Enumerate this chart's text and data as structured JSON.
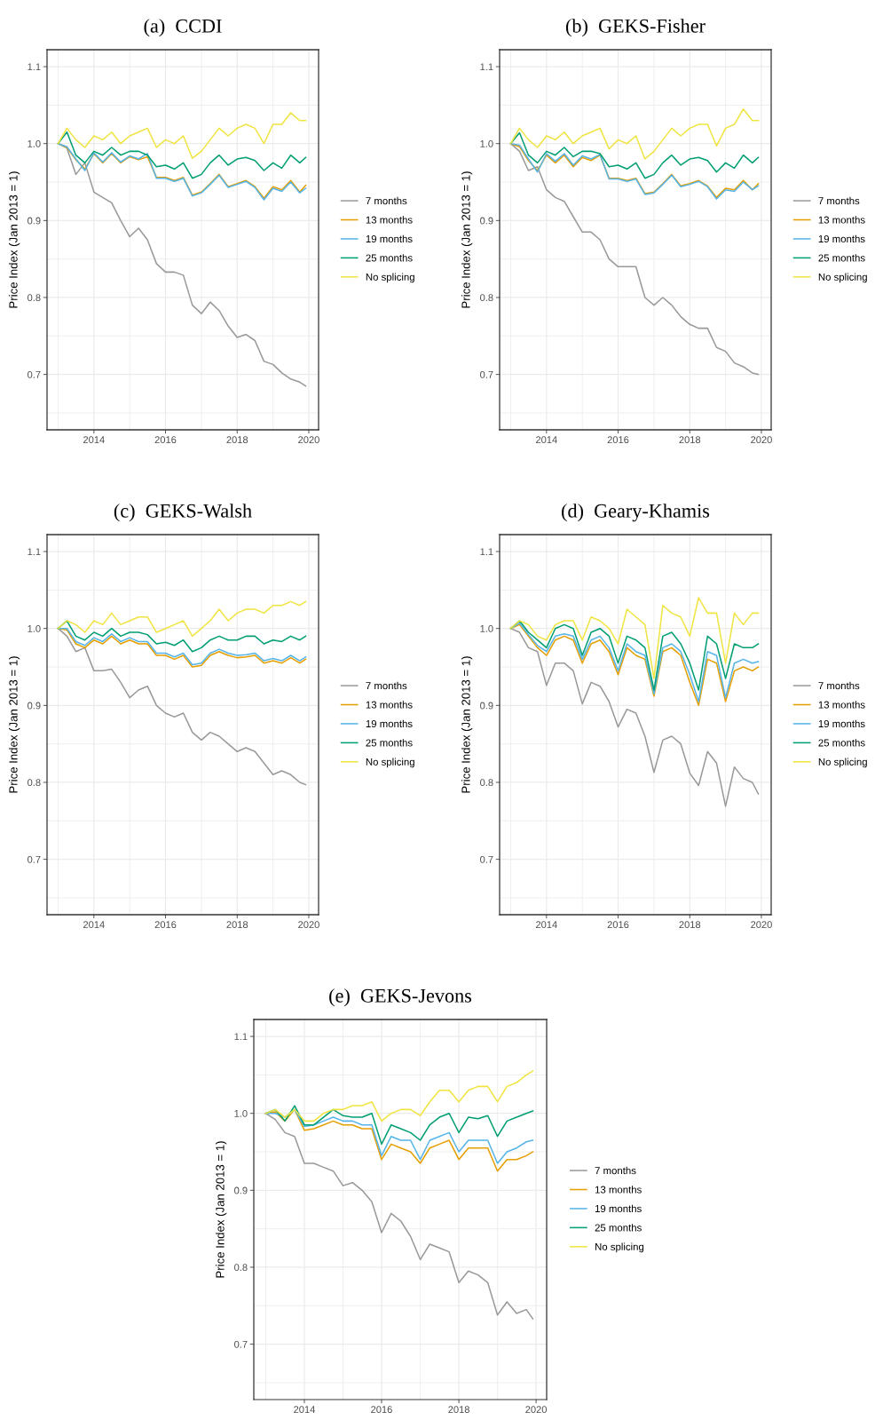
{
  "chart_data": [
    {
      "type": "line",
      "title": "(a)  CCDI",
      "ylabel": "Price Index (Jan 2013 = 1)",
      "legend": "right",
      "grid": true,
      "x": [
        "2013-01",
        "2013-04",
        "2013-07",
        "2013-10",
        "2014-01",
        "2014-04",
        "2014-07",
        "2014-10",
        "2015-01",
        "2015-04",
        "2015-07",
        "2015-10",
        "2016-01",
        "2016-04",
        "2016-07",
        "2016-10",
        "2017-01",
        "2017-04",
        "2017-07",
        "2017-10",
        "2018-01",
        "2018-04",
        "2018-07",
        "2018-10",
        "2019-01",
        "2019-04",
        "2019-07",
        "2019-10",
        "2019-12"
      ],
      "xlim": [
        "2012-09-10",
        "2020-04-10"
      ],
      "xticks": [
        {
          "value": "2013-01-01",
          "label": null
        },
        {
          "value": "2014-01-01",
          "label": "2014"
        },
        {
          "value": "2015-01-01",
          "label": null
        },
        {
          "value": "2016-01-01",
          "label": "2016"
        },
        {
          "value": "2017-01-01",
          "label": null
        },
        {
          "value": "2018-01-01",
          "label": "2018"
        },
        {
          "value": "2019-01-01",
          "label": null
        },
        {
          "value": "2020-01-01",
          "label": "2020"
        }
      ],
      "ylim": [
        0.628,
        1.122
      ],
      "yticks": [
        {
          "value": 0.65,
          "label": null
        },
        0.7,
        {
          "value": 0.75,
          "label": null
        },
        0.8,
        {
          "value": 0.85,
          "label": null
        },
        0.9,
        {
          "value": 0.95,
          "label": null
        },
        {
          "value": 1.0,
          "label": "1.0"
        },
        {
          "value": 1.05,
          "label": null
        },
        1.1
      ],
      "series": [
        {
          "name": "7 months",
          "color": "#999999",
          "values": [
            1.0,
            0.994,
            0.96,
            0.975,
            0.937,
            0.93,
            0.923,
            0.9,
            0.879,
            0.89,
            0.875,
            0.844,
            0.833,
            0.833,
            0.829,
            0.79,
            0.779,
            0.794,
            0.783,
            0.763,
            0.748,
            0.752,
            0.744,
            0.717,
            0.713,
            0.702,
            0.694,
            0.69,
            0.685
          ]
        },
        {
          "name": "13 months",
          "color": "#E69F00",
          "values": [
            1.0,
            0.995,
            0.979,
            0.967,
            0.987,
            0.975,
            0.987,
            0.975,
            0.983,
            0.979,
            0.983,
            0.956,
            0.956,
            0.952,
            0.956,
            0.933,
            0.937,
            0.948,
            0.96,
            0.944,
            0.948,
            0.952,
            0.944,
            0.929,
            0.944,
            0.94,
            0.952,
            0.937,
            0.946
          ]
        },
        {
          "name": "19 months",
          "color": "#56B4E9",
          "values": [
            1.0,
            0.996,
            0.98,
            0.965,
            0.988,
            0.976,
            0.988,
            0.976,
            0.984,
            0.98,
            0.987,
            0.955,
            0.955,
            0.951,
            0.955,
            0.932,
            0.936,
            0.947,
            0.959,
            0.943,
            0.947,
            0.951,
            0.943,
            0.927,
            0.942,
            0.938,
            0.95,
            0.936,
            0.942
          ]
        },
        {
          "name": "25 months",
          "color": "#009E73",
          "values": [
            1.0,
            1.015,
            0.985,
            0.975,
            0.99,
            0.985,
            0.995,
            0.985,
            0.99,
            0.99,
            0.985,
            0.97,
            0.972,
            0.967,
            0.975,
            0.955,
            0.96,
            0.975,
            0.985,
            0.972,
            0.98,
            0.982,
            0.978,
            0.965,
            0.975,
            0.968,
            0.985,
            0.975,
            0.982
          ]
        },
        {
          "name": "No splicing",
          "color": "#F0E442",
          "values": [
            1.0,
            1.02,
            1.005,
            0.995,
            1.01,
            1.005,
            1.015,
            1.0,
            1.01,
            1.015,
            1.02,
            0.995,
            1.005,
            1.0,
            1.01,
            0.981,
            0.99,
            1.005,
            1.02,
            1.01,
            1.02,
            1.025,
            1.02,
            1.0,
            1.025,
            1.025,
            1.04,
            1.03,
            1.03
          ]
        }
      ]
    },
    {
      "type": "line",
      "title": "(b)  GEKS-Fisher",
      "ylabel": "Price Index (Jan 2013 = 1)",
      "legend": "right",
      "grid": true,
      "x": [
        "2013-01",
        "2013-04",
        "2013-07",
        "2013-10",
        "2014-01",
        "2014-04",
        "2014-07",
        "2014-10",
        "2015-01",
        "2015-04",
        "2015-07",
        "2015-10",
        "2016-01",
        "2016-04",
        "2016-07",
        "2016-10",
        "2017-01",
        "2017-04",
        "2017-07",
        "2017-10",
        "2018-01",
        "2018-04",
        "2018-07",
        "2018-10",
        "2019-01",
        "2019-04",
        "2019-07",
        "2019-10",
        "2019-12"
      ],
      "xlim": [
        "2012-09-10",
        "2020-04-10"
      ],
      "xticks": [
        {
          "value": "2013-01-01",
          "label": null
        },
        {
          "value": "2014-01-01",
          "label": "2014"
        },
        {
          "value": "2015-01-01",
          "label": null
        },
        {
          "value": "2016-01-01",
          "label": "2016"
        },
        {
          "value": "2017-01-01",
          "label": null
        },
        {
          "value": "2018-01-01",
          "label": "2018"
        },
        {
          "value": "2019-01-01",
          "label": null
        },
        {
          "value": "2020-01-01",
          "label": "2020"
        }
      ],
      "ylim": [
        0.628,
        1.122
      ],
      "yticks": [
        {
          "value": 0.65,
          "label": null
        },
        0.7,
        {
          "value": 0.75,
          "label": null
        },
        0.8,
        {
          "value": 0.85,
          "label": null
        },
        0.9,
        {
          "value": 0.95,
          "label": null
        },
        {
          "value": 1.0,
          "label": "1.0"
        },
        {
          "value": 1.05,
          "label": null
        },
        1.1
      ],
      "series": [
        {
          "name": "7 months",
          "color": "#999999",
          "values": [
            1.0,
            0.99,
            0.965,
            0.97,
            0.94,
            0.93,
            0.925,
            0.905,
            0.885,
            0.885,
            0.875,
            0.85,
            0.84,
            0.84,
            0.84,
            0.8,
            0.79,
            0.8,
            0.79,
            0.775,
            0.765,
            0.76,
            0.76,
            0.735,
            0.73,
            0.715,
            0.71,
            0.702,
            0.7
          ]
        },
        {
          "name": "13 months",
          "color": "#E69F00",
          "values": [
            1.0,
            0.996,
            0.978,
            0.965,
            0.985,
            0.975,
            0.985,
            0.97,
            0.982,
            0.978,
            0.985,
            0.955,
            0.955,
            0.952,
            0.955,
            0.935,
            0.937,
            0.948,
            0.96,
            0.945,
            0.948,
            0.952,
            0.945,
            0.93,
            0.942,
            0.94,
            0.952,
            0.94,
            0.948
          ]
        },
        {
          "name": "19 months",
          "color": "#56B4E9",
          "values": [
            1.0,
            0.998,
            0.98,
            0.963,
            0.987,
            0.977,
            0.987,
            0.972,
            0.984,
            0.98,
            0.986,
            0.954,
            0.954,
            0.951,
            0.954,
            0.934,
            0.936,
            0.947,
            0.959,
            0.944,
            0.947,
            0.951,
            0.944,
            0.928,
            0.94,
            0.938,
            0.95,
            0.94,
            0.945
          ]
        },
        {
          "name": "25 months",
          "color": "#009E73",
          "values": [
            1.0,
            1.014,
            0.985,
            0.975,
            0.99,
            0.985,
            0.995,
            0.983,
            0.99,
            0.99,
            0.987,
            0.97,
            0.972,
            0.967,
            0.975,
            0.955,
            0.96,
            0.975,
            0.985,
            0.972,
            0.98,
            0.982,
            0.978,
            0.963,
            0.975,
            0.968,
            0.985,
            0.975,
            0.982
          ]
        },
        {
          "name": "No splicing",
          "color": "#F0E442",
          "values": [
            1.0,
            1.02,
            1.005,
            0.995,
            1.01,
            1.005,
            1.015,
            1.0,
            1.01,
            1.015,
            1.02,
            0.993,
            1.005,
            1.0,
            1.01,
            0.98,
            0.99,
            1.005,
            1.02,
            1.01,
            1.02,
            1.025,
            1.025,
            0.997,
            1.02,
            1.025,
            1.045,
            1.03,
            1.03
          ]
        }
      ]
    },
    {
      "type": "line",
      "title": "(c)  GEKS-Walsh",
      "ylabel": "Price Index (Jan 2013 = 1)",
      "legend": "right",
      "grid": true,
      "x": [
        "2013-01",
        "2013-04",
        "2013-07",
        "2013-10",
        "2014-01",
        "2014-04",
        "2014-07",
        "2014-10",
        "2015-01",
        "2015-04",
        "2015-07",
        "2015-10",
        "2016-01",
        "2016-04",
        "2016-07",
        "2016-10",
        "2017-01",
        "2017-04",
        "2017-07",
        "2017-10",
        "2018-01",
        "2018-04",
        "2018-07",
        "2018-10",
        "2019-01",
        "2019-04",
        "2019-07",
        "2019-10",
        "2019-12"
      ],
      "xlim": [
        "2012-09-10",
        "2020-04-10"
      ],
      "xticks": [
        {
          "value": "2013-01-01",
          "label": null
        },
        {
          "value": "2014-01-01",
          "label": "2014"
        },
        {
          "value": "2015-01-01",
          "label": null
        },
        {
          "value": "2016-01-01",
          "label": "2016"
        },
        {
          "value": "2017-01-01",
          "label": null
        },
        {
          "value": "2018-01-01",
          "label": "2018"
        },
        {
          "value": "2019-01-01",
          "label": null
        },
        {
          "value": "2020-01-01",
          "label": "2020"
        }
      ],
      "ylim": [
        0.628,
        1.122
      ],
      "yticks": [
        {
          "value": 0.65,
          "label": null
        },
        0.7,
        {
          "value": 0.75,
          "label": null
        },
        0.8,
        {
          "value": 0.85,
          "label": null
        },
        0.9,
        {
          "value": 0.95,
          "label": null
        },
        {
          "value": 1.0,
          "label": "1.0"
        },
        {
          "value": 1.05,
          "label": null
        },
        1.1
      ],
      "series": [
        {
          "name": "7 months",
          "color": "#999999",
          "values": [
            1.0,
            0.99,
            0.97,
            0.975,
            0.945,
            0.945,
            0.947,
            0.93,
            0.91,
            0.92,
            0.925,
            0.9,
            0.89,
            0.885,
            0.89,
            0.865,
            0.855,
            0.865,
            0.86,
            0.85,
            0.84,
            0.845,
            0.84,
            0.825,
            0.81,
            0.815,
            0.81,
            0.8,
            0.797
          ]
        },
        {
          "name": "13 months",
          "color": "#E69F00",
          "values": [
            1.0,
            0.998,
            0.98,
            0.975,
            0.985,
            0.98,
            0.99,
            0.98,
            0.985,
            0.98,
            0.98,
            0.965,
            0.965,
            0.96,
            0.965,
            0.95,
            0.952,
            0.965,
            0.97,
            0.965,
            0.962,
            0.963,
            0.965,
            0.955,
            0.958,
            0.955,
            0.962,
            0.955,
            0.96
          ]
        },
        {
          "name": "19 months",
          "color": "#56B4E9",
          "values": [
            1.0,
            1.0,
            0.983,
            0.978,
            0.988,
            0.983,
            0.993,
            0.983,
            0.988,
            0.983,
            0.983,
            0.968,
            0.968,
            0.963,
            0.968,
            0.953,
            0.955,
            0.968,
            0.973,
            0.968,
            0.965,
            0.966,
            0.968,
            0.958,
            0.961,
            0.958,
            0.965,
            0.958,
            0.963
          ]
        },
        {
          "name": "25 months",
          "color": "#009E73",
          "values": [
            1.0,
            1.01,
            0.99,
            0.985,
            0.995,
            0.99,
            1.0,
            0.99,
            0.995,
            0.995,
            0.992,
            0.98,
            0.982,
            0.978,
            0.985,
            0.97,
            0.975,
            0.985,
            0.99,
            0.985,
            0.985,
            0.99,
            0.99,
            0.98,
            0.985,
            0.983,
            0.99,
            0.985,
            0.99
          ]
        },
        {
          "name": "No splicing",
          "color": "#F0E442",
          "values": [
            1.0,
            1.01,
            1.005,
            0.995,
            1.01,
            1.005,
            1.02,
            1.005,
            1.01,
            1.015,
            1.015,
            0.995,
            1.0,
            1.005,
            1.01,
            0.99,
            1.0,
            1.01,
            1.025,
            1.01,
            1.02,
            1.025,
            1.025,
            1.02,
            1.03,
            1.03,
            1.035,
            1.03,
            1.035
          ]
        }
      ]
    },
    {
      "type": "line",
      "title": "(d)  Geary-Khamis",
      "ylabel": "Price Index (Jan 2013 = 1)",
      "legend": "right",
      "grid": true,
      "x": [
        "2013-01",
        "2013-04",
        "2013-07",
        "2013-10",
        "2014-01",
        "2014-04",
        "2014-07",
        "2014-10",
        "2015-01",
        "2015-04",
        "2015-07",
        "2015-10",
        "2016-01",
        "2016-04",
        "2016-07",
        "2016-10",
        "2017-01",
        "2017-04",
        "2017-07",
        "2017-10",
        "2018-01",
        "2018-04",
        "2018-07",
        "2018-10",
        "2019-01",
        "2019-04",
        "2019-07",
        "2019-10",
        "2019-12"
      ],
      "xlim": [
        "2012-09-10",
        "2020-04-10"
      ],
      "xticks": [
        {
          "value": "2013-01-01",
          "label": null
        },
        {
          "value": "2014-01-01",
          "label": "2014"
        },
        {
          "value": "2015-01-01",
          "label": null
        },
        {
          "value": "2016-01-01",
          "label": "2016"
        },
        {
          "value": "2017-01-01",
          "label": null
        },
        {
          "value": "2018-01-01",
          "label": "2018"
        },
        {
          "value": "2019-01-01",
          "label": null
        },
        {
          "value": "2020-01-01",
          "label": "2020"
        }
      ],
      "ylim": [
        0.628,
        1.122
      ],
      "yticks": [
        {
          "value": 0.65,
          "label": null
        },
        0.7,
        {
          "value": 0.75,
          "label": null
        },
        0.8,
        {
          "value": 0.85,
          "label": null
        },
        0.9,
        {
          "value": 0.95,
          "label": null
        },
        {
          "value": 1.0,
          "label": "1.0"
        },
        {
          "value": 1.05,
          "label": null
        },
        1.1
      ],
      "series": [
        {
          "name": "7 months",
          "color": "#999999",
          "values": [
            1.0,
            0.995,
            0.975,
            0.97,
            0.926,
            0.955,
            0.955,
            0.945,
            0.902,
            0.93,
            0.925,
            0.905,
            0.872,
            0.895,
            0.89,
            0.86,
            0.813,
            0.855,
            0.86,
            0.85,
            0.812,
            0.796,
            0.84,
            0.825,
            0.769,
            0.82,
            0.805,
            0.8,
            0.785
          ]
        },
        {
          "name": "13 months",
          "color": "#E69F00",
          "values": [
            1.0,
            1.005,
            0.99,
            0.975,
            0.965,
            0.985,
            0.99,
            0.985,
            0.955,
            0.98,
            0.985,
            0.97,
            0.94,
            0.975,
            0.965,
            0.96,
            0.912,
            0.97,
            0.975,
            0.965,
            0.93,
            0.9,
            0.96,
            0.955,
            0.905,
            0.945,
            0.95,
            0.945,
            0.95
          ]
        },
        {
          "name": "19 months",
          "color": "#56B4E9",
          "values": [
            1.0,
            1.007,
            0.992,
            0.978,
            0.97,
            0.99,
            0.993,
            0.99,
            0.96,
            0.985,
            0.99,
            0.975,
            0.945,
            0.98,
            0.97,
            0.965,
            0.915,
            0.975,
            0.98,
            0.97,
            0.94,
            0.905,
            0.97,
            0.965,
            0.91,
            0.955,
            0.96,
            0.955,
            0.957
          ]
        },
        {
          "name": "25 months",
          "color": "#009E73",
          "values": [
            1.0,
            1.01,
            0.995,
            0.985,
            0.975,
            1.0,
            1.005,
            1.0,
            0.965,
            0.995,
            1.0,
            0.99,
            0.955,
            0.99,
            0.985,
            0.975,
            0.92,
            0.99,
            0.995,
            0.98,
            0.955,
            0.92,
            0.99,
            0.98,
            0.935,
            0.98,
            0.975,
            0.975,
            0.98
          ]
        },
        {
          "name": "No splicing",
          "color": "#F0E442",
          "values": [
            1.0,
            1.01,
            1.005,
            0.99,
            0.985,
            1.005,
            1.01,
            1.01,
            0.985,
            1.015,
            1.01,
            1.0,
            0.98,
            1.025,
            1.015,
            1.005,
            0.935,
            1.03,
            1.02,
            1.015,
            0.99,
            1.04,
            1.02,
            1.02,
            0.955,
            1.02,
            1.005,
            1.02,
            1.02
          ]
        }
      ]
    },
    {
      "type": "line",
      "title": "(e)  GEKS-Jevons",
      "ylabel": "Price Index (Jan 2013 = 1)",
      "legend": "right",
      "grid": true,
      "x": [
        "2013-01",
        "2013-04",
        "2013-07",
        "2013-10",
        "2014-01",
        "2014-04",
        "2014-07",
        "2014-10",
        "2015-01",
        "2015-04",
        "2015-07",
        "2015-10",
        "2016-01",
        "2016-04",
        "2016-07",
        "2016-10",
        "2017-01",
        "2017-04",
        "2017-07",
        "2017-10",
        "2018-01",
        "2018-04",
        "2018-07",
        "2018-10",
        "2019-01",
        "2019-04",
        "2019-07",
        "2019-10",
        "2019-12"
      ],
      "xlim": [
        "2012-09-10",
        "2020-04-10"
      ],
      "xticks": [
        {
          "value": "2013-01-01",
          "label": null
        },
        {
          "value": "2014-01-01",
          "label": "2014"
        },
        {
          "value": "2015-01-01",
          "label": null
        },
        {
          "value": "2016-01-01",
          "label": "2016"
        },
        {
          "value": "2017-01-01",
          "label": null
        },
        {
          "value": "2018-01-01",
          "label": "2018"
        },
        {
          "value": "2019-01-01",
          "label": null
        },
        {
          "value": "2020-01-01",
          "label": "2020"
        }
      ],
      "ylim": [
        0.628,
        1.122
      ],
      "yticks": [
        {
          "value": 0.65,
          "label": null
        },
        0.7,
        {
          "value": 0.75,
          "label": null
        },
        0.8,
        {
          "value": 0.85,
          "label": null
        },
        0.9,
        {
          "value": 0.95,
          "label": null
        },
        {
          "value": 1.0,
          "label": "1.0"
        },
        {
          "value": 1.05,
          "label": null
        },
        1.1
      ],
      "series": [
        {
          "name": "7 months",
          "color": "#999999",
          "values": [
            1.0,
            0.992,
            0.975,
            0.97,
            0.935,
            0.935,
            0.93,
            0.925,
            0.906,
            0.91,
            0.9,
            0.885,
            0.845,
            0.87,
            0.86,
            0.84,
            0.81,
            0.83,
            0.825,
            0.82,
            0.78,
            0.795,
            0.79,
            0.78,
            0.738,
            0.755,
            0.74,
            0.745,
            0.733
          ]
        },
        {
          "name": "13 months",
          "color": "#E69F00",
          "values": [
            1.0,
            1.002,
            0.99,
            1.005,
            0.978,
            0.98,
            0.985,
            0.99,
            0.985,
            0.985,
            0.98,
            0.98,
            0.94,
            0.96,
            0.955,
            0.95,
            0.935,
            0.955,
            0.96,
            0.965,
            0.94,
            0.955,
            0.955,
            0.955,
            0.925,
            0.94,
            0.94,
            0.945,
            0.95
          ]
        },
        {
          "name": "19 months",
          "color": "#56B4E9",
          "values": [
            1.0,
            1.0,
            0.995,
            1.005,
            0.983,
            0.985,
            0.99,
            0.995,
            0.99,
            0.99,
            0.985,
            0.985,
            0.945,
            0.97,
            0.965,
            0.965,
            0.94,
            0.965,
            0.97,
            0.975,
            0.95,
            0.965,
            0.965,
            0.965,
            0.935,
            0.95,
            0.955,
            0.963,
            0.965
          ]
        },
        {
          "name": "25 months",
          "color": "#009E73",
          "values": [
            1.0,
            1.005,
            0.99,
            1.01,
            0.985,
            0.985,
            0.995,
            1.005,
            0.997,
            0.995,
            0.995,
            1.0,
            0.96,
            0.985,
            0.98,
            0.975,
            0.965,
            0.985,
            0.995,
            1.0,
            0.975,
            0.995,
            0.993,
            0.997,
            0.97,
            0.99,
            0.995,
            1.0,
            1.003
          ]
        },
        {
          "name": "No splicing",
          "color": "#F0E442",
          "values": [
            1.0,
            1.005,
            0.995,
            1.005,
            0.99,
            0.99,
            1.0,
            1.005,
            1.005,
            1.01,
            1.01,
            1.015,
            0.99,
            1.0,
            1.005,
            1.005,
            0.997,
            1.015,
            1.03,
            1.03,
            1.015,
            1.03,
            1.035,
            1.035,
            1.015,
            1.035,
            1.04,
            1.05,
            1.055
          ]
        }
      ]
    }
  ]
}
